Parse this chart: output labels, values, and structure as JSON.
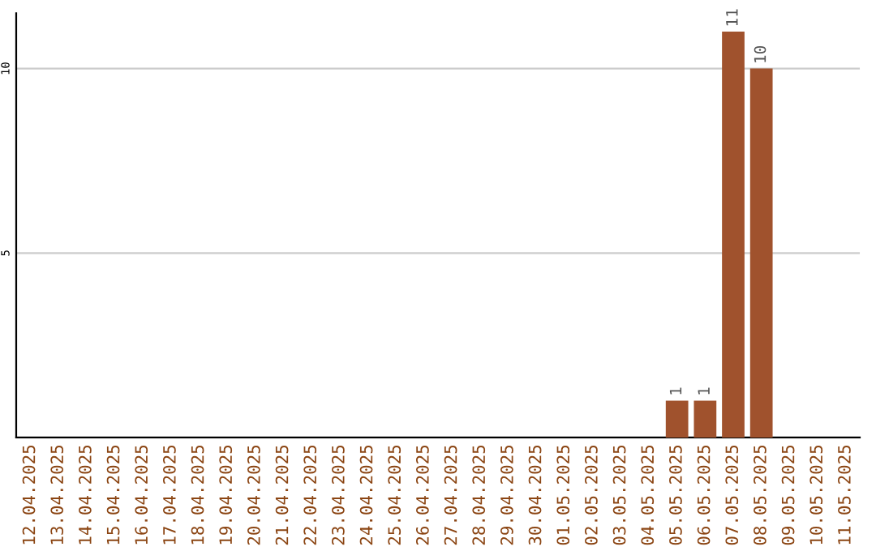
{
  "chart_data": {
    "type": "bar",
    "categories": [
      "12.04.2025",
      "13.04.2025",
      "14.04.2025",
      "15.04.2025",
      "16.04.2025",
      "17.04.2025",
      "18.04.2025",
      "19.04.2025",
      "20.04.2025",
      "21.04.2025",
      "22.04.2025",
      "23.04.2025",
      "24.04.2025",
      "25.04.2025",
      "26.04.2025",
      "27.04.2025",
      "28.04.2025",
      "29.04.2025",
      "30.04.2025",
      "01.05.2025",
      "02.05.2025",
      "03.05.2025",
      "04.05.2025",
      "05.05.2025",
      "06.05.2025",
      "07.05.2025",
      "08.05.2025",
      "09.05.2025",
      "10.05.2025",
      "11.05.2025"
    ],
    "values": [
      0,
      0,
      0,
      0,
      0,
      0,
      0,
      0,
      0,
      0,
      0,
      0,
      0,
      0,
      0,
      0,
      0,
      0,
      0,
      0,
      0,
      0,
      0,
      1,
      1,
      11,
      10,
      0,
      0,
      0
    ],
    "value_labels": [
      null,
      null,
      null,
      null,
      null,
      null,
      null,
      null,
      null,
      null,
      null,
      null,
      null,
      null,
      null,
      null,
      null,
      null,
      null,
      null,
      null,
      null,
      null,
      "1",
      "1",
      "11",
      "10",
      null,
      null,
      null
    ],
    "color": "#a0522d",
    "ylim": [
      0,
      11.5
    ],
    "yticks": [
      5,
      10
    ],
    "grid": "y"
  }
}
